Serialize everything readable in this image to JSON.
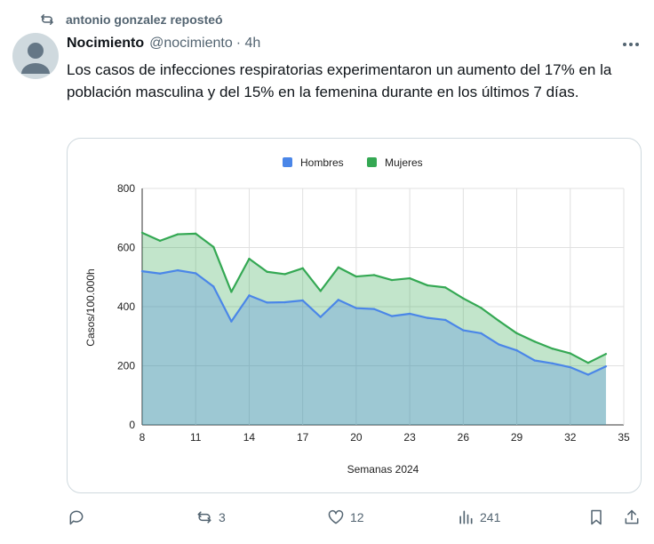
{
  "repost": {
    "text": "antonio gonzalez reposteó",
    "icon": "repost-icon"
  },
  "author": {
    "name": "Nocimiento",
    "handle": "@nocimiento",
    "time": "· 4h"
  },
  "tweet": {
    "text": "Los casos de infecciones respiratorias experimentaron un aumento del 17% en la población masculina y del 15% en la femenina durante en los últimos 7 días."
  },
  "actions": {
    "replies": "",
    "reposts": "3",
    "likes": "12",
    "views": "241"
  },
  "colors": {
    "hombres": "#4a86e8",
    "mujeres": "#34a853",
    "text_secondary": "#536471"
  },
  "chart_data": {
    "type": "area",
    "xlabel": "Semanas 2024",
    "ylabel": "Casos/100.000h",
    "xlim": [
      8,
      35
    ],
    "ylim": [
      0,
      800
    ],
    "xticks": [
      8,
      11,
      14,
      17,
      20,
      23,
      26,
      29,
      32,
      35
    ],
    "yticks": [
      0,
      200,
      400,
      600,
      800
    ],
    "grid": true,
    "legend": "top",
    "x": [
      8,
      9,
      10,
      11,
      12,
      13,
      14,
      15,
      16,
      17,
      18,
      19,
      20,
      21,
      22,
      23,
      24,
      25,
      26,
      27,
      28,
      29,
      30,
      31,
      32,
      33,
      34
    ],
    "series": [
      {
        "name": "Hombres",
        "color": "#4a86e8",
        "values": [
          520,
          512,
          523,
          513,
          468,
          350,
          438,
          414,
          415,
          421,
          365,
          423,
          395,
          392,
          368,
          376,
          362,
          355,
          320,
          310,
          272,
          252,
          218,
          208,
          195,
          170,
          198
        ]
      },
      {
        "name": "Mujeres",
        "color": "#34a853",
        "values": [
          650,
          623,
          645,
          647,
          602,
          450,
          562,
          518,
          510,
          530,
          453,
          533,
          502,
          507,
          490,
          496,
          472,
          465,
          428,
          396,
          352,
          310,
          282,
          258,
          242,
          210,
          240
        ]
      }
    ]
  }
}
